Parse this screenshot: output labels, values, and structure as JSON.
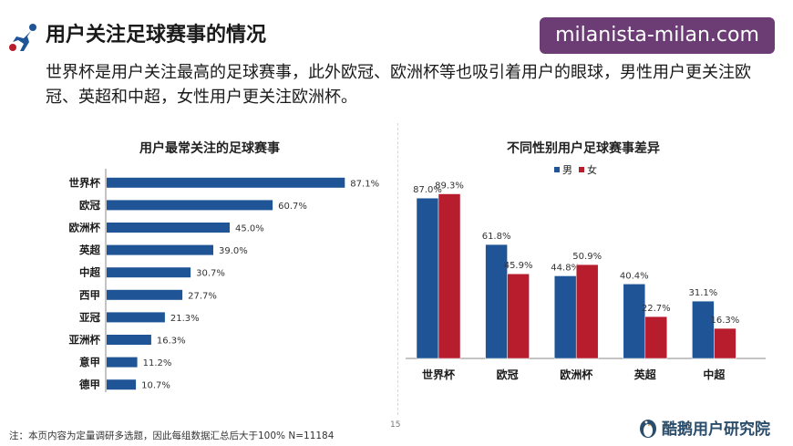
{
  "header": {
    "title": "用户关注足球赛事的情况",
    "subtitle": "世界杯是用户关注最高的足球赛事，此外欧冠、欧洲杯等也吸引着用户的眼球，男性用户更关注欧冠、英超和中超，女性用户更关注欧洲杯。",
    "watermark": "milanista-milan.com"
  },
  "footer": {
    "note": "注：本页内容为定量调研多选题，因此每组数据汇总后大于100%  N=11184",
    "page_number": "15",
    "brand": "酷鹅用户研究院"
  },
  "colors": {
    "blue": "#1f5597",
    "red": "#b81d2e"
  },
  "chart_data": [
    {
      "type": "bar",
      "orientation": "horizontal",
      "title": "用户最常关注的足球赛事",
      "categories": [
        "世界杯",
        "欧冠",
        "欧洲杯",
        "英超",
        "中超",
        "西甲",
        "亚冠",
        "亚洲杯",
        "意甲",
        "德甲"
      ],
      "values": [
        87.1,
        60.7,
        45.0,
        39.0,
        30.7,
        27.7,
        21.3,
        16.3,
        11.2,
        10.7
      ],
      "labels": [
        "87.1%",
        "60.7%",
        "45.0%",
        "39.0%",
        "30.7%",
        "27.7%",
        "21.3%",
        "16.3%",
        "11.2%",
        "10.7%"
      ],
      "xlim": [
        0,
        100
      ]
    },
    {
      "type": "bar",
      "orientation": "vertical",
      "title": "不同性别用户足球赛事差异",
      "categories": [
        "世界杯",
        "欧冠",
        "欧洲杯",
        "英超",
        "中超"
      ],
      "series": [
        {
          "name": "男",
          "values": [
            87.0,
            61.8,
            44.8,
            40.4,
            31.1
          ],
          "labels": [
            "87.0%",
            "61.8%",
            "44.8%",
            "40.4%",
            "31.1%"
          ]
        },
        {
          "name": "女",
          "values": [
            89.3,
            45.9,
            50.9,
            22.7,
            16.3
          ],
          "labels": [
            "89.3%",
            "45.9%",
            "50.9%",
            "22.7%",
            "16.3%"
          ]
        }
      ],
      "ylim": [
        0,
        100
      ],
      "legend": "top"
    }
  ]
}
